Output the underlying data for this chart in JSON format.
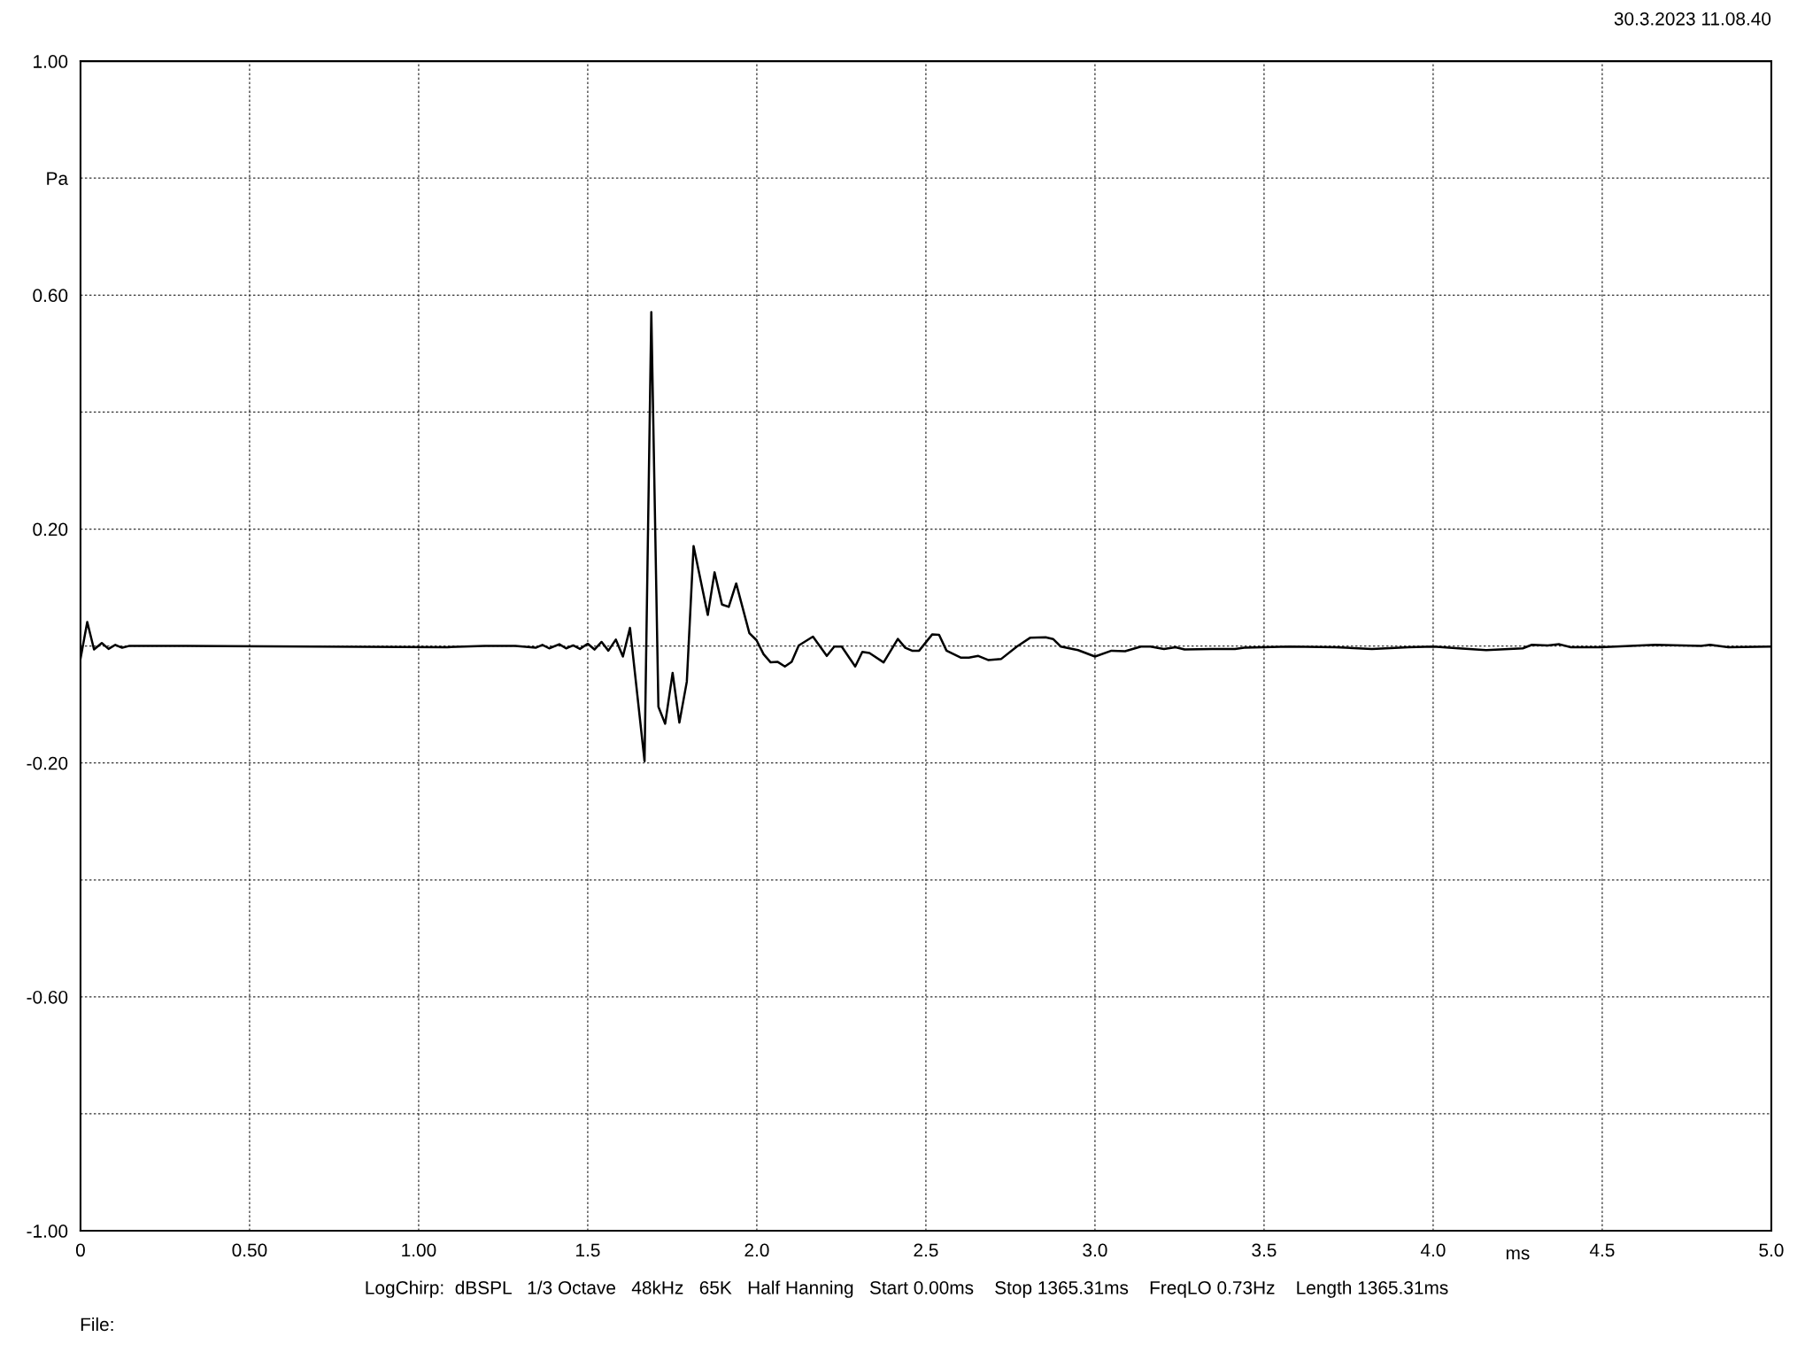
{
  "chart_data": {
    "type": "line",
    "xlabel": "ms",
    "annotations": [
      "30.3.2023 11.08.40",
      "LogChirp:  dBSPL   1/3 Octave   48kHz   65K   Half Hanning   Start 0.00ms    Stop 1365.31ms    FreqLO 0.73Hz    Length 1365.31ms",
      "File:"
    ],
    "series": [
      {
        "color": "#000000",
        "x": [
          0,
          0.02,
          0.04,
          0.063,
          0.083,
          0.103,
          0.123,
          0.143,
          0.314,
          1.085,
          1.195,
          1.286,
          1.346,
          1.366,
          1.386,
          1.416,
          1.436,
          1.457,
          1.477,
          1.5,
          1.52,
          1.541,
          1.561,
          1.583,
          1.604,
          1.625,
          1.668,
          1.688,
          1.709,
          1.729,
          1.751,
          1.771,
          1.793,
          1.813,
          1.855,
          1.875,
          1.897,
          1.917,
          1.939,
          1.978,
          1.999,
          2.02,
          2.041,
          2.061,
          2.083,
          2.103,
          2.124,
          2.166,
          2.207,
          2.229,
          2.251,
          2.291,
          2.312,
          2.333,
          2.375,
          2.417,
          2.439,
          2.459,
          2.48,
          2.519,
          2.539,
          2.561,
          2.604,
          2.627,
          2.655,
          2.684,
          2.723,
          2.769,
          2.808,
          2.854,
          2.876,
          2.899,
          2.95,
          3.0,
          3.049,
          3.089,
          3.136,
          3.164,
          3.204,
          3.238,
          3.265,
          3.346,
          3.414,
          3.441,
          3.576,
          3.711,
          3.819,
          3.927,
          4.001,
          4.076,
          4.157,
          4.265,
          4.292,
          4.339,
          4.373,
          4.407,
          4.495,
          4.657,
          4.792,
          4.819,
          4.873,
          5.0
        ],
        "values": [
          -0.022,
          0.041,
          -0.006,
          0.005,
          -0.005,
          0.002,
          -0.003,
          0.0,
          0.0,
          -0.002,
          0.0,
          0.0,
          -0.003,
          0.002,
          -0.004,
          0.003,
          -0.004,
          0.001,
          -0.005,
          0.004,
          -0.006,
          0.007,
          -0.008,
          0.011,
          -0.018,
          0.031,
          -0.197,
          0.571,
          -0.104,
          -0.133,
          -0.046,
          -0.131,
          -0.061,
          0.171,
          0.053,
          0.126,
          0.071,
          0.067,
          0.107,
          0.022,
          0.01,
          -0.014,
          -0.028,
          -0.027,
          -0.035,
          -0.027,
          0.001,
          0.016,
          -0.017,
          -0.001,
          -0.001,
          -0.035,
          -0.01,
          -0.012,
          -0.028,
          0.012,
          -0.003,
          -0.008,
          -0.008,
          0.02,
          0.019,
          -0.008,
          -0.02,
          -0.02,
          -0.017,
          -0.024,
          -0.022,
          -0.001,
          0.014,
          0.015,
          0.012,
          -0.001,
          -0.007,
          -0.018,
          -0.008,
          -0.009,
          -0.001,
          -0.001,
          -0.005,
          -0.002,
          -0.006,
          -0.005,
          -0.005,
          -0.003,
          -0.001,
          -0.002,
          -0.005,
          -0.002,
          -0.001,
          -0.004,
          -0.007,
          -0.004,
          0.002,
          0.001,
          0.003,
          -0.002,
          -0.002,
          0.002,
          0.0,
          0.002,
          -0.002,
          -0.001
        ]
      }
    ],
    "xlim": [
      0,
      5
    ],
    "xticks": [
      0,
      {
        "value": 0.5,
        "label": "0.50"
      },
      {
        "value": 1,
        "label": "1.00"
      },
      1.5,
      {
        "value": 2,
        "label": "2.0"
      },
      2.5,
      {
        "value": 3,
        "label": "3.0"
      },
      3.5,
      {
        "value": 4,
        "label": "4.0"
      },
      4.5,
      {
        "value": 5,
        "label": "5.0"
      }
    ],
    "ylim": [
      -1,
      1
    ],
    "yticks": [
      {
        "value": -1,
        "label": "-1.00"
      },
      {
        "value": -0.8,
        "label": null
      },
      {
        "value": -0.6,
        "label": "-0.60"
      },
      {
        "value": -0.4,
        "label": null
      },
      {
        "value": -0.2,
        "label": "-0.20"
      },
      {
        "value": 0,
        "label": null
      },
      {
        "value": 0.2,
        "label": "0.20"
      },
      {
        "value": 0.4,
        "label": null
      },
      {
        "value": 0.6,
        "label": "0.60"
      },
      {
        "value": 0.8,
        "label": "Pa"
      },
      {
        "value": 1,
        "label": "1.00"
      }
    ],
    "grid": true,
    "line_style": "solid",
    "marker": "none"
  }
}
